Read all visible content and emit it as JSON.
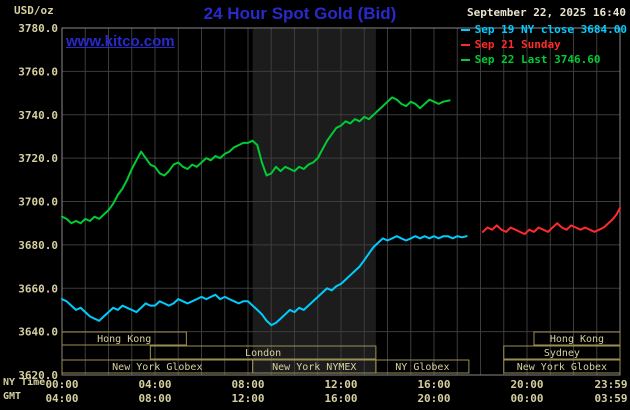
{
  "header": {
    "unit_label": "USD/oz",
    "title": "24 Hour Spot Gold (Bid)",
    "datetime": "September 22, 2025 16:40",
    "watermark": "www.kitco.com"
  },
  "legend": [
    {
      "label": "Sep 19 NY close 3684.00",
      "color": "#00ccff"
    },
    {
      "label": "Sep 21 Sunday",
      "color": "#ff2a2a"
    },
    {
      "label": "Sep 22 Last 3746.60",
      "color": "#00cc33"
    }
  ],
  "axes": {
    "ny_time_label": "NY Time",
    "gmt_label": "GMT",
    "y_ticks": [
      "3780.0",
      "3760.0",
      "3740.0",
      "3720.0",
      "3700.0",
      "3680.0",
      "3660.0",
      "3640.0",
      "3620.0"
    ],
    "x_hours": [
      0,
      4,
      8,
      12,
      16,
      20,
      24
    ],
    "ny_labels": [
      "00:00",
      "04:00",
      "08:00",
      "12:00",
      "16:00",
      "20:00",
      "23:59"
    ],
    "gmt_labels": [
      "04:00",
      "08:00",
      "12:00",
      "16:00",
      "20:00",
      "00:00",
      "03:59"
    ]
  },
  "colors": {
    "background": "#000000",
    "title_blue": "#2929cc",
    "axis_text": "#d6cfa0",
    "datetime_text": "#e8e4d0",
    "grid": "#3c3c3c",
    "frame": "#8a8a8a",
    "band": "#1c1c1c",
    "session_border": "#9a8f55"
  },
  "nymex_band": {
    "start": 8.2,
    "end": 13.5
  },
  "sessions": [
    {
      "label": "Hong Kong",
      "row": 0,
      "start": 0,
      "end": 5.35
    },
    {
      "label": "Hong Kong",
      "row": 0,
      "start": 20.3,
      "end": 24
    },
    {
      "label": "London",
      "row": 1,
      "start": 3.8,
      "end": 13.5
    },
    {
      "label": "Sydney",
      "row": 1,
      "start": 19,
      "end": 24
    },
    {
      "label": "New York Globex",
      "row": 2,
      "start": 0,
      "end": 8.2
    },
    {
      "label": "New York NYMEX",
      "row": 2,
      "start": 8.2,
      "end": 13.5
    },
    {
      "label": "NY Globex",
      "row": 2,
      "start": 13.5,
      "end": 17.5
    },
    {
      "label": "New York Globex",
      "row": 2,
      "start": 19,
      "end": 24
    }
  ],
  "chart_data": {
    "type": "line",
    "title": "24 Hour Spot Gold (Bid)",
    "ylabel": "USD/oz",
    "xlabel": "NY Time (hours)",
    "ylim": [
      3620,
      3780
    ],
    "xlim_hours": [
      0,
      24
    ],
    "grid": true,
    "legend_position": "top-right",
    "series": [
      {
        "id": "sep22",
        "name": "Sep 22 (Last 3746.60)",
        "color": "#00cc33",
        "points": [
          [
            0,
            3693
          ],
          [
            0.2,
            3692
          ],
          [
            0.4,
            3690
          ],
          [
            0.6,
            3691
          ],
          [
            0.8,
            3690
          ],
          [
            1,
            3692
          ],
          [
            1.2,
            3691
          ],
          [
            1.4,
            3693
          ],
          [
            1.6,
            3692
          ],
          [
            1.8,
            3694
          ],
          [
            2,
            3696
          ],
          [
            2.2,
            3699
          ],
          [
            2.4,
            3703
          ],
          [
            2.6,
            3706
          ],
          [
            2.8,
            3710
          ],
          [
            3,
            3715
          ],
          [
            3.2,
            3719
          ],
          [
            3.4,
            3723
          ],
          [
            3.6,
            3720
          ],
          [
            3.8,
            3717
          ],
          [
            4,
            3716
          ],
          [
            4.2,
            3713
          ],
          [
            4.4,
            3712
          ],
          [
            4.6,
            3714
          ],
          [
            4.8,
            3717
          ],
          [
            5,
            3718
          ],
          [
            5.2,
            3716
          ],
          [
            5.4,
            3715
          ],
          [
            5.6,
            3717
          ],
          [
            5.8,
            3716
          ],
          [
            6,
            3718
          ],
          [
            6.2,
            3720
          ],
          [
            6.4,
            3719
          ],
          [
            6.6,
            3721
          ],
          [
            6.8,
            3720
          ],
          [
            7,
            3722
          ],
          [
            7.2,
            3723
          ],
          [
            7.4,
            3725
          ],
          [
            7.6,
            3726
          ],
          [
            7.8,
            3727
          ],
          [
            8,
            3727
          ],
          [
            8.2,
            3728
          ],
          [
            8.4,
            3726
          ],
          [
            8.6,
            3718
          ],
          [
            8.8,
            3712
          ],
          [
            9,
            3713
          ],
          [
            9.2,
            3716
          ],
          [
            9.4,
            3714
          ],
          [
            9.6,
            3716
          ],
          [
            9.8,
            3715
          ],
          [
            10,
            3714
          ],
          [
            10.2,
            3716
          ],
          [
            10.4,
            3715
          ],
          [
            10.6,
            3717
          ],
          [
            10.8,
            3718
          ],
          [
            11,
            3720
          ],
          [
            11.2,
            3724
          ],
          [
            11.4,
            3728
          ],
          [
            11.6,
            3731
          ],
          [
            11.8,
            3734
          ],
          [
            12,
            3735
          ],
          [
            12.2,
            3737
          ],
          [
            12.4,
            3736
          ],
          [
            12.6,
            3738
          ],
          [
            12.8,
            3737
          ],
          [
            13,
            3739
          ],
          [
            13.2,
            3738
          ],
          [
            13.4,
            3740
          ],
          [
            13.6,
            3742
          ],
          [
            13.8,
            3744
          ],
          [
            14,
            3746
          ],
          [
            14.2,
            3748
          ],
          [
            14.4,
            3747
          ],
          [
            14.6,
            3745
          ],
          [
            14.8,
            3744
          ],
          [
            15,
            3746
          ],
          [
            15.2,
            3745
          ],
          [
            15.4,
            3743
          ],
          [
            15.6,
            3745
          ],
          [
            15.8,
            3747
          ],
          [
            16,
            3746
          ],
          [
            16.2,
            3745
          ],
          [
            16.4,
            3746
          ],
          [
            16.67,
            3746.6
          ]
        ]
      },
      {
        "id": "sep19",
        "name": "Sep 19 NY close 3684.00",
        "color": "#00ccff",
        "points": [
          [
            0,
            3655
          ],
          [
            0.2,
            3654
          ],
          [
            0.4,
            3652
          ],
          [
            0.6,
            3650
          ],
          [
            0.8,
            3651
          ],
          [
            1,
            3649
          ],
          [
            1.2,
            3647
          ],
          [
            1.4,
            3646
          ],
          [
            1.6,
            3645
          ],
          [
            1.8,
            3647
          ],
          [
            2,
            3649
          ],
          [
            2.2,
            3651
          ],
          [
            2.4,
            3650
          ],
          [
            2.6,
            3652
          ],
          [
            2.8,
            3651
          ],
          [
            3,
            3650
          ],
          [
            3.2,
            3649
          ],
          [
            3.4,
            3651
          ],
          [
            3.6,
            3653
          ],
          [
            3.8,
            3652
          ],
          [
            4,
            3652
          ],
          [
            4.2,
            3654
          ],
          [
            4.4,
            3653
          ],
          [
            4.6,
            3652
          ],
          [
            4.8,
            3653
          ],
          [
            5,
            3655
          ],
          [
            5.2,
            3654
          ],
          [
            5.4,
            3653
          ],
          [
            5.6,
            3654
          ],
          [
            5.8,
            3655
          ],
          [
            6,
            3656
          ],
          [
            6.2,
            3655
          ],
          [
            6.4,
            3656
          ],
          [
            6.6,
            3657
          ],
          [
            6.8,
            3655
          ],
          [
            7,
            3656
          ],
          [
            7.2,
            3655
          ],
          [
            7.4,
            3654
          ],
          [
            7.6,
            3653
          ],
          [
            7.8,
            3654
          ],
          [
            8,
            3654
          ],
          [
            8.2,
            3652
          ],
          [
            8.4,
            3650
          ],
          [
            8.6,
            3648
          ],
          [
            8.8,
            3645
          ],
          [
            9,
            3643
          ],
          [
            9.2,
            3644
          ],
          [
            9.4,
            3646
          ],
          [
            9.6,
            3648
          ],
          [
            9.8,
            3650
          ],
          [
            10,
            3649
          ],
          [
            10.2,
            3651
          ],
          [
            10.4,
            3650
          ],
          [
            10.6,
            3652
          ],
          [
            10.8,
            3654
          ],
          [
            11,
            3656
          ],
          [
            11.2,
            3658
          ],
          [
            11.4,
            3660
          ],
          [
            11.6,
            3659
          ],
          [
            11.8,
            3661
          ],
          [
            12,
            3662
          ],
          [
            12.2,
            3664
          ],
          [
            12.4,
            3666
          ],
          [
            12.6,
            3668
          ],
          [
            12.8,
            3670
          ],
          [
            13,
            3673
          ],
          [
            13.2,
            3676
          ],
          [
            13.4,
            3679
          ],
          [
            13.6,
            3681
          ],
          [
            13.8,
            3683
          ],
          [
            14,
            3682
          ],
          [
            14.2,
            3683
          ],
          [
            14.4,
            3684
          ],
          [
            14.6,
            3683
          ],
          [
            14.8,
            3682
          ],
          [
            15,
            3683
          ],
          [
            15.2,
            3684
          ],
          [
            15.4,
            3683
          ],
          [
            15.6,
            3684
          ],
          [
            15.8,
            3683
          ],
          [
            16,
            3684
          ],
          [
            16.2,
            3683
          ],
          [
            16.4,
            3684
          ],
          [
            16.6,
            3684
          ],
          [
            16.8,
            3683
          ],
          [
            17,
            3684
          ],
          [
            17.2,
            3683.5
          ],
          [
            17.4,
            3684
          ]
        ]
      },
      {
        "id": "sep21",
        "name": "Sep 21 Sunday",
        "color": "#ff2a2a",
        "points": [
          [
            18.1,
            3686
          ],
          [
            18.3,
            3688
          ],
          [
            18.5,
            3687
          ],
          [
            18.7,
            3689
          ],
          [
            18.9,
            3687
          ],
          [
            19.1,
            3686
          ],
          [
            19.3,
            3688
          ],
          [
            19.5,
            3687
          ],
          [
            19.7,
            3686
          ],
          [
            19.9,
            3685
          ],
          [
            20.1,
            3687
          ],
          [
            20.3,
            3686
          ],
          [
            20.5,
            3688
          ],
          [
            20.7,
            3687
          ],
          [
            20.9,
            3686
          ],
          [
            21.1,
            3688
          ],
          [
            21.3,
            3690
          ],
          [
            21.5,
            3688
          ],
          [
            21.7,
            3687
          ],
          [
            21.9,
            3689
          ],
          [
            22.1,
            3688
          ],
          [
            22.3,
            3687
          ],
          [
            22.5,
            3688
          ],
          [
            22.7,
            3687
          ],
          [
            22.9,
            3686
          ],
          [
            23.1,
            3687
          ],
          [
            23.3,
            3688
          ],
          [
            23.5,
            3690
          ],
          [
            23.7,
            3692
          ],
          [
            23.85,
            3694
          ],
          [
            24,
            3697
          ]
        ]
      }
    ]
  }
}
